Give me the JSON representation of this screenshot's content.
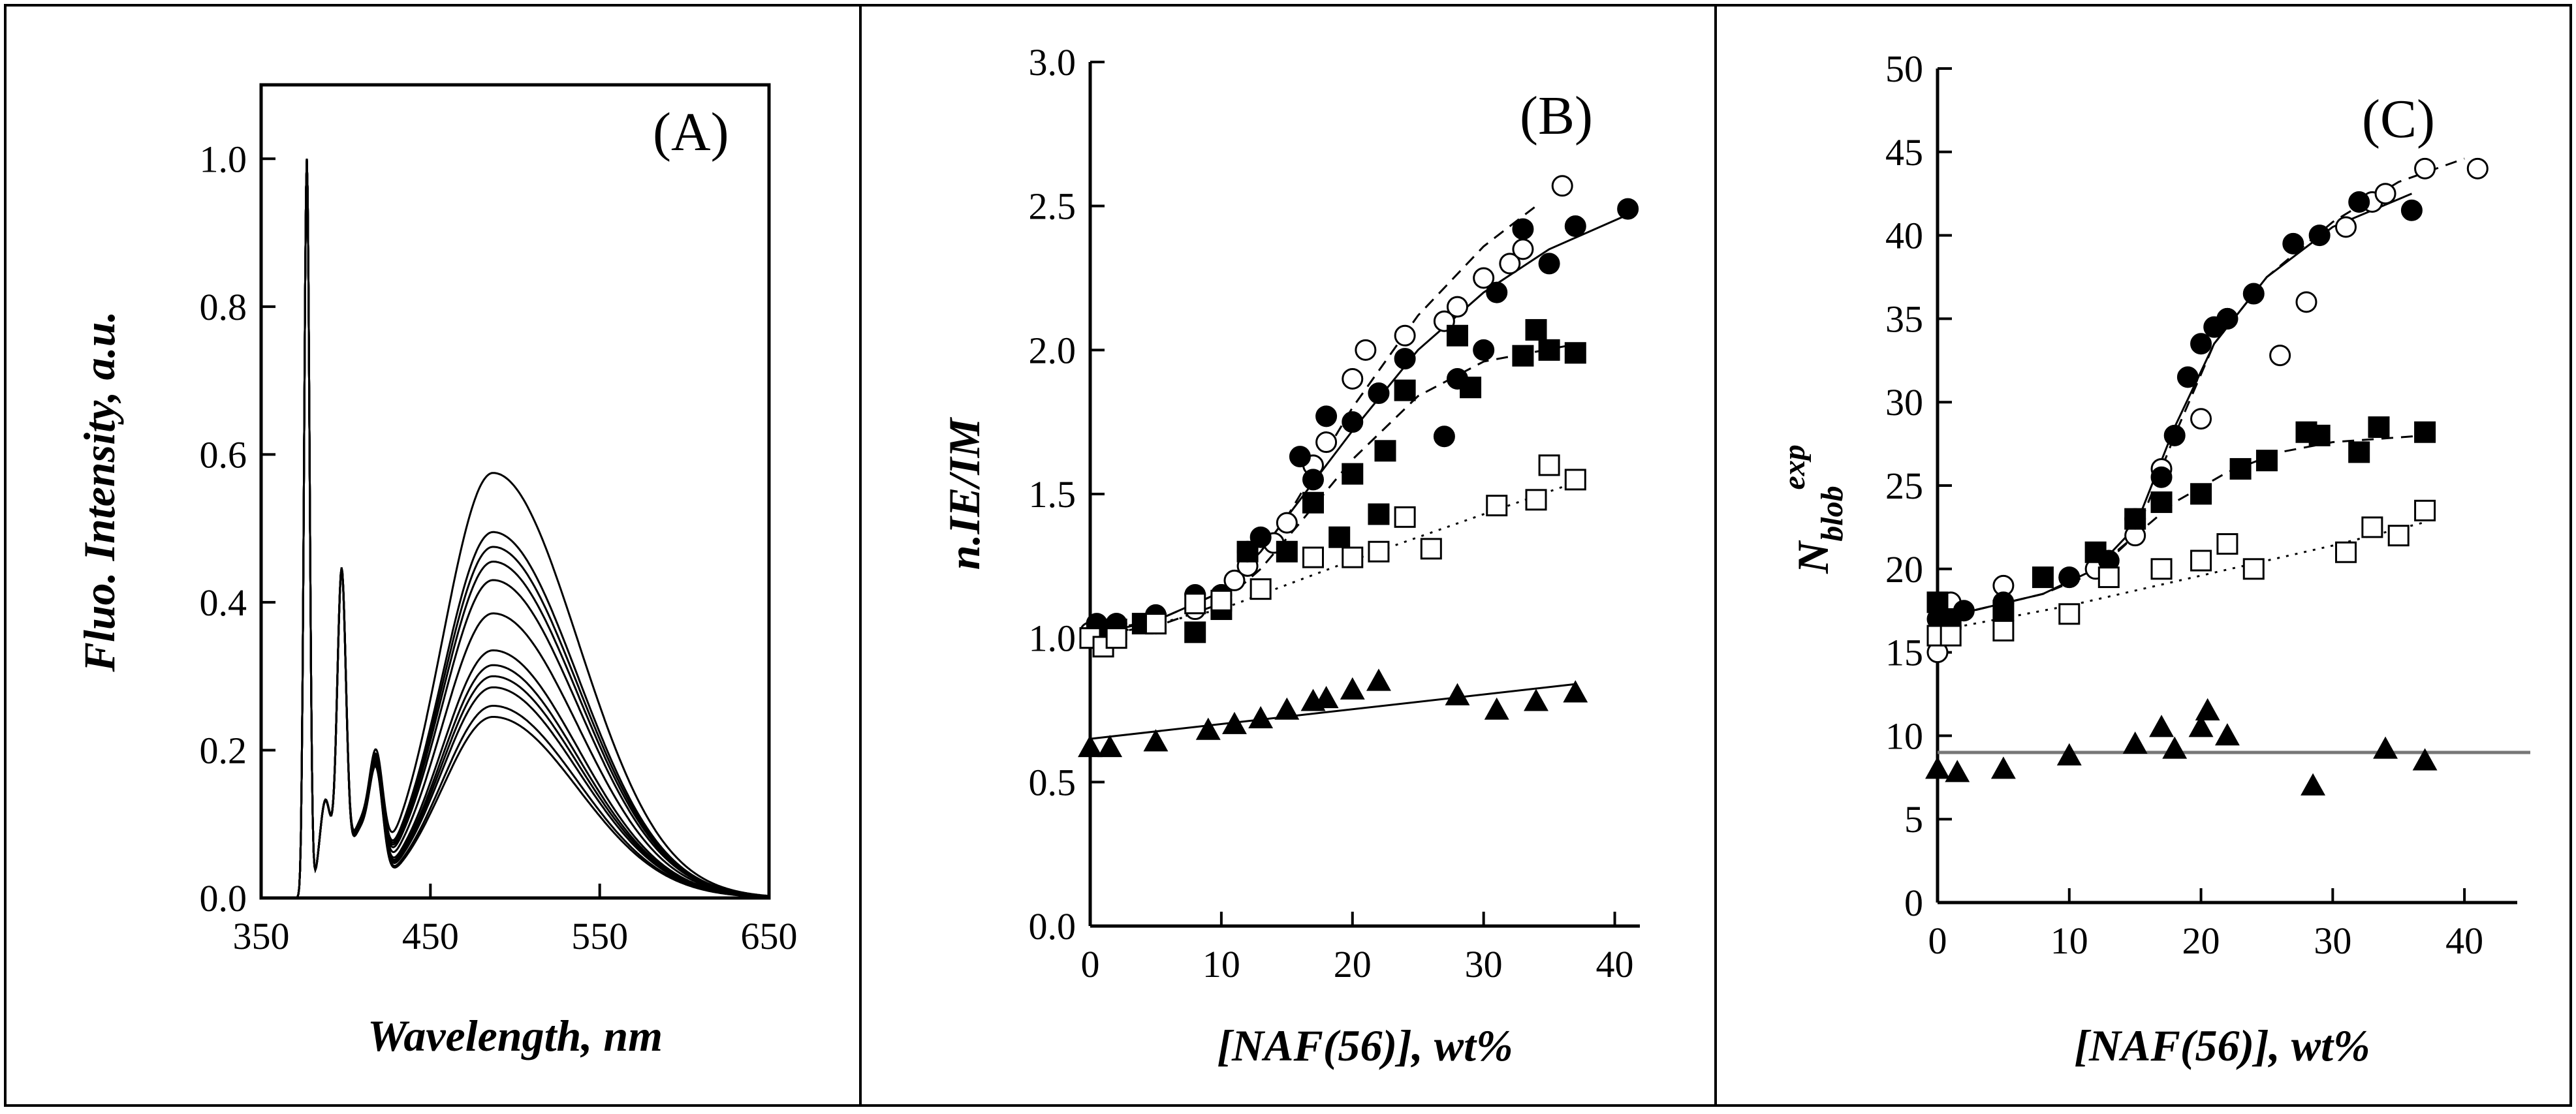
{
  "figure": {
    "panel_labels": [
      "(A)",
      "(B)",
      "(C)"
    ]
  },
  "chart_data": [
    {
      "type": "line",
      "panel_label": "(A)",
      "title": "",
      "xlabel": "Wavelength, nm",
      "ylabel": "Fluo. Intensity, a.u.",
      "xlim": [
        350,
        650
      ],
      "ylim": [
        0,
        1.1
      ],
      "xticks": [
        350,
        450,
        550,
        650
      ],
      "yticks": [
        0.0,
        0.2,
        0.4,
        0.6,
        0.8,
        1.0
      ],
      "xtick_labels": [
        "350",
        "450",
        "550",
        "650"
      ],
      "ytick_labels": [
        "0.0",
        "0.2",
        "0.4",
        "0.6",
        "0.8",
        "1.0"
      ],
      "grid": false,
      "spectrum_model": {
        "monomer_bands": [
          {
            "center": 377,
            "width": 1.6,
            "height": 1.0
          },
          {
            "center": 388,
            "width": 3.5,
            "height": 0.13
          },
          {
            "center": 397.5,
            "width": 2.6,
            "height": 0.42
          },
          {
            "center": 408,
            "width": 6.0,
            "height": 0.08
          },
          {
            "center": 418,
            "width": 4.0,
            "height": 0.14
          }
        ],
        "excimer_center": 487,
        "excimer_sigma_low": 30,
        "excimer_sigma_high": 50,
        "x_range": [
          365,
          650
        ]
      },
      "series": [
        {
          "name": "spectrum 1",
          "excimer_peak": 0.575,
          "monomer_scale": 1.0
        },
        {
          "name": "spectrum 2",
          "excimer_peak": 0.495,
          "monomer_scale": 1.0
        },
        {
          "name": "spectrum 3",
          "excimer_peak": 0.475,
          "monomer_scale": 1.0
        },
        {
          "name": "spectrum 4",
          "excimer_peak": 0.455,
          "monomer_scale": 1.0
        },
        {
          "name": "spectrum 5",
          "excimer_peak": 0.43,
          "monomer_scale": 1.0
        },
        {
          "name": "spectrum 6",
          "excimer_peak": 0.385,
          "monomer_scale": 1.0
        },
        {
          "name": "spectrum 7",
          "excimer_peak": 0.335,
          "monomer_scale": 1.0
        },
        {
          "name": "spectrum 8",
          "excimer_peak": 0.315,
          "monomer_scale": 1.0
        },
        {
          "name": "spectrum 9",
          "excimer_peak": 0.3,
          "monomer_scale": 1.0
        },
        {
          "name": "spectrum 10",
          "excimer_peak": 0.285,
          "monomer_scale": 1.0
        },
        {
          "name": "spectrum 11",
          "excimer_peak": 0.26,
          "monomer_scale": 1.0
        },
        {
          "name": "spectrum 12",
          "excimer_peak": 0.245,
          "monomer_scale": 1.0
        }
      ]
    },
    {
      "type": "scatter",
      "panel_label": "(B)",
      "title": "",
      "xlabel": "[NAF(56)], wt%",
      "ylabel": "n.IE/IM",
      "xlim": [
        0,
        45
      ],
      "ylim": [
        0,
        3.0
      ],
      "xticks": [
        0,
        10,
        20,
        30,
        40
      ],
      "yticks": [
        0.0,
        0.5,
        1.0,
        1.5,
        2.0,
        2.5,
        3.0
      ],
      "xtick_labels": [
        "0",
        "10",
        "20",
        "30",
        "40"
      ],
      "ytick_labels": [
        "0.0",
        "0.5",
        "1.0",
        "1.5",
        "2.0",
        "2.5",
        "3.0"
      ],
      "grid": false,
      "series": [
        {
          "name": "open circles",
          "marker": "circle",
          "filled": false,
          "x": [
            0,
            0.5,
            1,
            2,
            5,
            8,
            10,
            11,
            12,
            14,
            15,
            17,
            18,
            20,
            21,
            24,
            27,
            28,
            30,
            32,
            33,
            36
          ],
          "y": [
            1.02,
            1.03,
            1.0,
            1.05,
            1.05,
            1.1,
            1.15,
            1.2,
            1.25,
            1.33,
            1.4,
            1.6,
            1.68,
            1.9,
            2.0,
            2.05,
            2.1,
            2.15,
            2.25,
            2.3,
            2.35,
            2.57
          ]
        },
        {
          "name": "filled circles",
          "marker": "circle",
          "filled": true,
          "x": [
            0,
            0.5,
            1,
            2,
            5,
            8,
            10,
            12,
            13,
            16,
            17,
            18,
            20,
            22,
            24,
            27,
            28,
            30,
            31,
            33,
            35,
            37,
            41
          ],
          "y": [
            1.0,
            1.05,
            1.02,
            1.05,
            1.08,
            1.15,
            1.15,
            1.3,
            1.35,
            1.63,
            1.55,
            1.77,
            1.75,
            1.85,
            1.97,
            1.7,
            1.9,
            2.0,
            2.2,
            2.42,
            2.3,
            2.43,
            2.49
          ]
        },
        {
          "name": "filled squares",
          "marker": "square",
          "filled": true,
          "x": [
            0,
            1,
            2,
            4,
            5,
            8,
            10,
            12,
            15,
            17,
            19,
            20,
            22,
            22.5,
            24,
            28,
            29,
            33,
            34,
            35,
            37
          ],
          "y": [
            1.0,
            1.03,
            1.03,
            1.05,
            1.05,
            1.02,
            1.1,
            1.3,
            1.3,
            1.47,
            1.35,
            1.57,
            1.43,
            1.65,
            1.86,
            2.05,
            1.87,
            1.98,
            2.07,
            2.0,
            1.99
          ]
        },
        {
          "name": "open squares",
          "marker": "square",
          "filled": false,
          "x": [
            0,
            1,
            2,
            5,
            8,
            10,
            13,
            17,
            20,
            22,
            24,
            26,
            31,
            34,
            35,
            37
          ],
          "y": [
            1.0,
            0.97,
            1.0,
            1.05,
            1.12,
            1.13,
            1.17,
            1.28,
            1.28,
            1.3,
            1.42,
            1.31,
            1.46,
            1.48,
            1.6,
            1.55
          ]
        },
        {
          "name": "filled triangles",
          "marker": "triangle",
          "filled": true,
          "x": [
            0,
            1.5,
            5,
            9,
            11,
            13,
            15,
            17,
            18,
            20,
            22,
            28,
            31,
            34,
            37
          ],
          "y": [
            0.62,
            0.62,
            0.64,
            0.68,
            0.7,
            0.72,
            0.75,
            0.78,
            0.79,
            0.82,
            0.85,
            0.8,
            0.75,
            0.78,
            0.81
          ]
        }
      ],
      "fit_lines": [
        {
          "name": "open circles fit",
          "style": "dashed",
          "x": [
            0,
            5,
            10,
            12,
            15,
            20,
            25,
            30,
            34
          ],
          "y": [
            1.02,
            1.06,
            1.16,
            1.24,
            1.42,
            1.8,
            2.12,
            2.36,
            2.5
          ]
        },
        {
          "name": "filled circles fit",
          "style": "solid",
          "x": [
            0,
            5,
            10,
            13,
            16,
            20,
            25,
            30,
            35,
            41
          ],
          "y": [
            1.01,
            1.06,
            1.16,
            1.3,
            1.48,
            1.72,
            2.0,
            2.2,
            2.35,
            2.47
          ]
        },
        {
          "name": "filled squares fit",
          "style": "dashed",
          "x": [
            0,
            5,
            10,
            13,
            16,
            20,
            25,
            30,
            37
          ],
          "y": [
            1.01,
            1.04,
            1.12,
            1.24,
            1.4,
            1.62,
            1.84,
            1.96,
            2.02
          ]
        },
        {
          "name": "open squares fit",
          "style": "dotted",
          "x": [
            0,
            10,
            20,
            30,
            37
          ],
          "y": [
            1.0,
            1.1,
            1.27,
            1.43,
            1.54
          ]
        },
        {
          "name": "filled triangles fit",
          "style": "solid",
          "x": [
            0,
            37
          ],
          "y": [
            0.65,
            0.84
          ]
        }
      ]
    },
    {
      "type": "scatter",
      "panel_label": "(C)",
      "title": "",
      "xlabel": "[NAF(56)], wt%",
      "ylabel_main": "N",
      "ylabel_sub": "blob",
      "ylabel_sup": "exp",
      "xlim": [
        0,
        45
      ],
      "ylim": [
        0,
        50
      ],
      "xticks": [
        0,
        10,
        20,
        30,
        40
      ],
      "yticks": [
        0,
        5,
        10,
        15,
        20,
        25,
        30,
        35,
        40,
        45,
        50
      ],
      "xtick_labels": [
        "0",
        "10",
        "20",
        "30",
        "40"
      ],
      "ytick_labels": [
        "0",
        "5",
        "10",
        "15",
        "20",
        "25",
        "30",
        "35",
        "40",
        "45",
        "50"
      ],
      "grid": false,
      "series": [
        {
          "name": "open circles",
          "marker": "circle",
          "filled": false,
          "x": [
            0,
            0.5,
            1,
            5,
            10,
            12,
            15,
            17,
            20,
            22,
            26,
            28,
            31,
            33,
            34,
            37,
            41
          ],
          "y": [
            15,
            17,
            18,
            19,
            19.5,
            20,
            22,
            26,
            29,
            35,
            32.8,
            36,
            40.5,
            42,
            42.5,
            44,
            44
          ]
        },
        {
          "name": "filled circles",
          "marker": "circle",
          "filled": true,
          "x": [
            0,
            0.5,
            1,
            2,
            5,
            10,
            13,
            15,
            17,
            18,
            19,
            20,
            21,
            22,
            24,
            27,
            29,
            32,
            36
          ],
          "y": [
            17,
            16.5,
            16.5,
            17.5,
            18,
            19.5,
            20.5,
            23,
            25.5,
            28,
            31.5,
            33.5,
            34.5,
            35,
            36.5,
            39.5,
            40,
            42,
            41.5
          ]
        },
        {
          "name": "filled squares",
          "marker": "square",
          "filled": true,
          "x": [
            0,
            1,
            5,
            8,
            12,
            15,
            17,
            20,
            23,
            25,
            28,
            29,
            32,
            33.5,
            37
          ],
          "y": [
            18,
            17,
            17.5,
            19.5,
            21,
            23,
            24,
            24.5,
            26,
            26.5,
            28.2,
            28,
            27,
            28.5,
            28.2
          ]
        },
        {
          "name": "open squares",
          "marker": "square",
          "filled": false,
          "x": [
            0,
            1,
            5,
            10,
            13,
            17,
            20,
            22,
            24,
            31,
            33,
            35,
            37
          ],
          "y": [
            16,
            16,
            16.3,
            17.3,
            19.5,
            20,
            20.5,
            21.5,
            20,
            21,
            22.5,
            22,
            23.5
          ]
        },
        {
          "name": "filled triangles",
          "marker": "triangle",
          "filled": true,
          "x": [
            0,
            1.5,
            5,
            10,
            15,
            17,
            18,
            20,
            20.5,
            22,
            28.5,
            34,
            37
          ],
          "y": [
            8,
            7.8,
            8,
            8.8,
            9.5,
            10.5,
            9.2,
            10.5,
            11.5,
            10,
            7,
            9.2,
            8.5
          ]
        }
      ],
      "fit_lines": [
        {
          "name": "open circles fit",
          "style": "dashed",
          "x": [
            0,
            8,
            12,
            15,
            18,
            21,
            25,
            30,
            35,
            40
          ],
          "y": [
            17,
            18.5,
            19.8,
            22,
            28,
            33.5,
            37.5,
            40.8,
            43.2,
            44.6
          ]
        },
        {
          "name": "filled circles fit",
          "style": "solid",
          "x": [
            0,
            8,
            12,
            15,
            18,
            21,
            25,
            30,
            36
          ],
          "y": [
            17,
            18.5,
            20,
            22.5,
            28.5,
            33.5,
            37.5,
            40.5,
            42.5
          ]
        },
        {
          "name": "filled squares fit",
          "style": "dashed",
          "x": [
            0,
            8,
            12,
            15,
            18,
            22,
            26,
            30,
            37
          ],
          "y": [
            17,
            18.5,
            20,
            22,
            24,
            25.8,
            27,
            27.6,
            28
          ]
        },
        {
          "name": "open squares fit",
          "style": "dotted",
          "x": [
            0,
            10,
            20,
            30,
            37
          ],
          "y": [
            16.3,
            17.8,
            19.6,
            21.4,
            22.8
          ]
        },
        {
          "name": "filled triangles fit",
          "style": "solid",
          "x": [
            0,
            45
          ],
          "y": [
            9,
            9
          ]
        }
      ]
    }
  ]
}
